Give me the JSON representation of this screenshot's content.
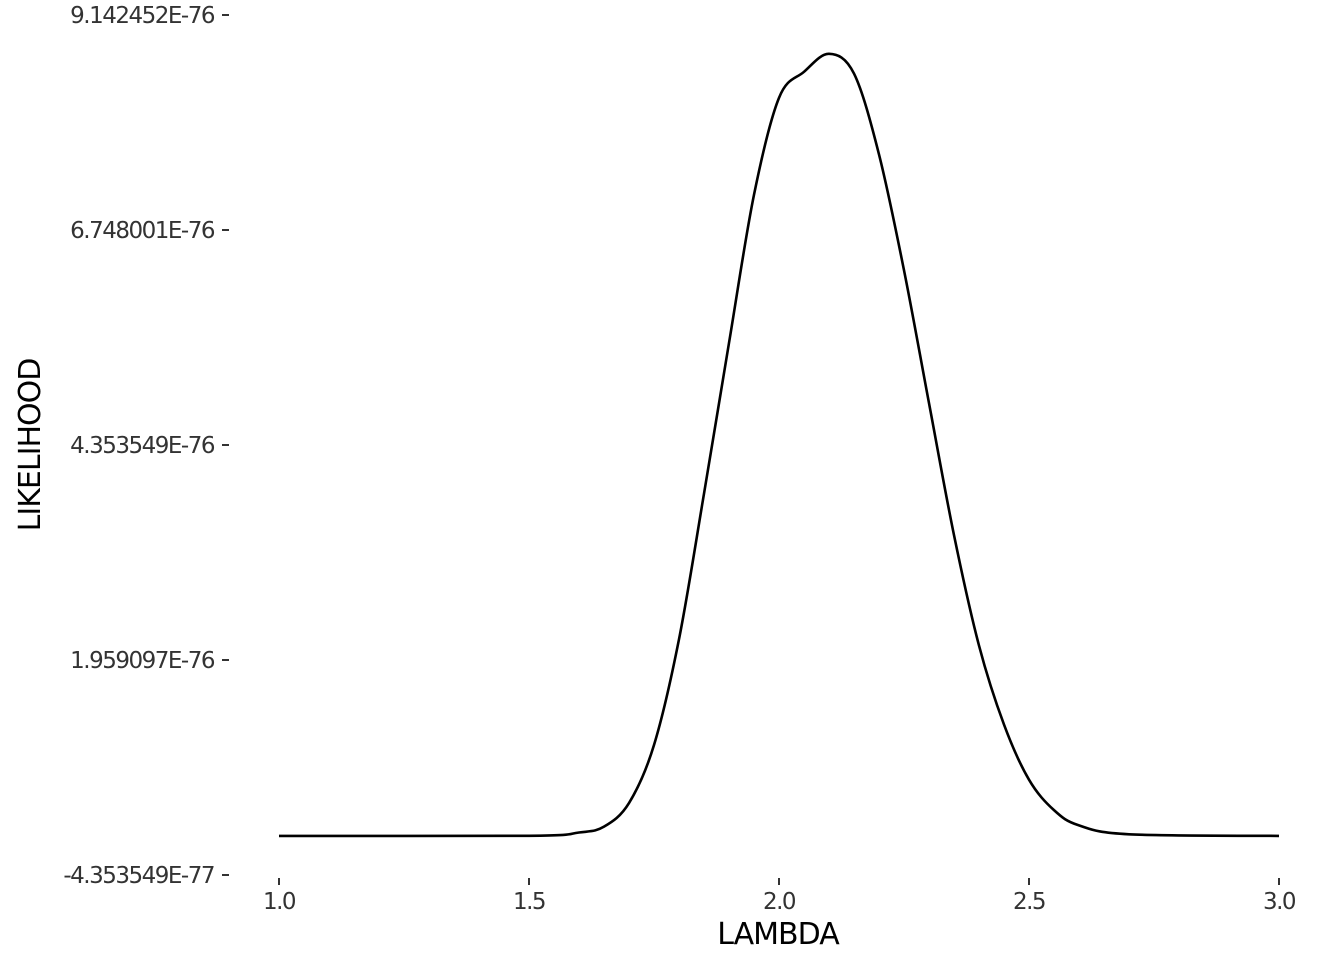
{
  "chart_data": {
    "type": "line",
    "title": "",
    "xlabel": "LAMBDA",
    "ylabel": "LIKELIHOOD",
    "xlim": [
      1.0,
      3.0
    ],
    "ylim": [
      -4.353549e-77,
      9.142452e-76
    ],
    "grid": false,
    "legend": "none",
    "x_ticks": [
      {
        "value": 1.0,
        "label": "1.0"
      },
      {
        "value": 1.5,
        "label": "1.5"
      },
      {
        "value": 2.0,
        "label": "2.0"
      },
      {
        "value": 2.5,
        "label": "2.5"
      },
      {
        "value": 3.0,
        "label": "3.0"
      }
    ],
    "y_ticks": [
      {
        "value": -4.353549e-77,
        "label": "-4.353549E-77"
      },
      {
        "value": 1.959097e-76,
        "label": "1.959097E-76"
      },
      {
        "value": 4.353549e-76,
        "label": "4.353549E-76"
      },
      {
        "value": 6.748001e-76,
        "label": "6.748001E-76"
      },
      {
        "value": 9.142452e-76,
        "label": "9.142452E-76"
      }
    ],
    "series": [
      {
        "color": "#000000",
        "x": [
          1.0,
          1.5,
          1.6,
          1.65,
          1.7,
          1.75,
          1.8,
          1.85,
          1.9,
          1.95,
          2.0,
          2.05,
          2.1,
          2.15,
          2.2,
          2.25,
          2.3,
          2.35,
          2.4,
          2.45,
          2.5,
          2.55,
          2.6,
          2.7,
          3.0
        ],
        "y": [
          0,
          1e-79,
          3.8e-78,
          1.03e-77,
          3.66e-77,
          1.012e-76,
          2.19e-76,
          3.811e-76,
          5.49e-76,
          7.14e-76,
          8.22e-76,
          8.51e-76,
          8.71e-76,
          8.49e-76,
          7.59e-76,
          6.3e-76,
          4.82e-76,
          3.35e-76,
          2.12e-76,
          1.24e-76,
          6.26e-77,
          2.87e-77,
          1.17e-77,
          1.8e-78,
          0
        ]
      }
    ]
  }
}
